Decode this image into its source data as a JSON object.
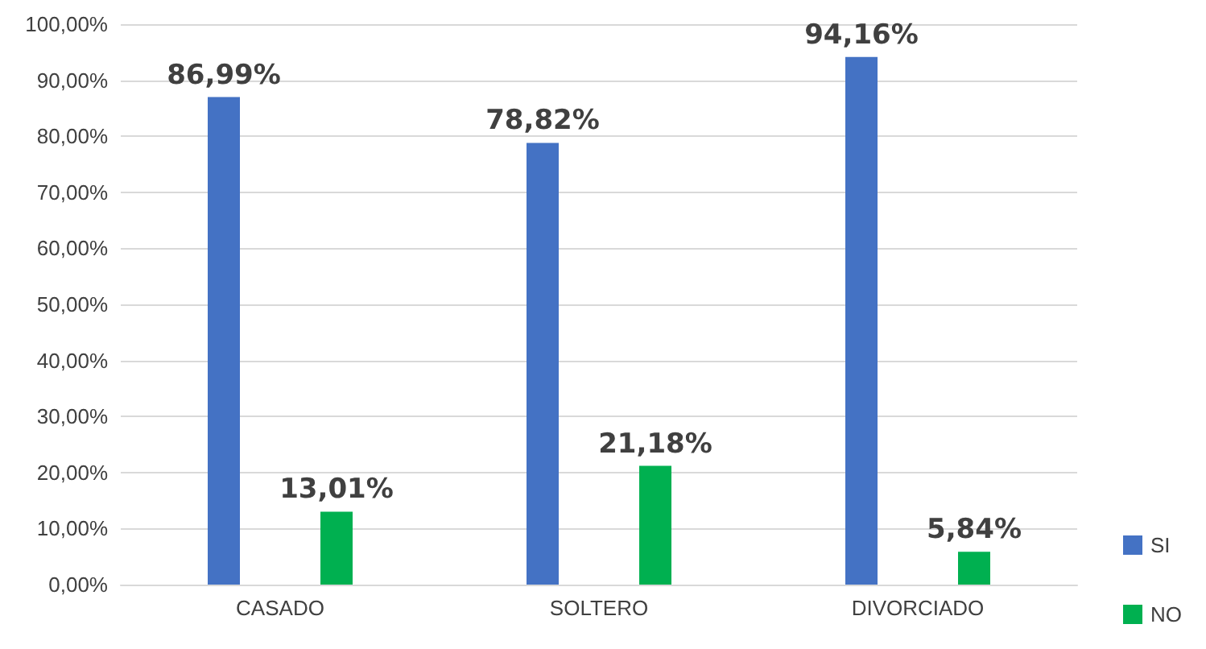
{
  "chart_data": {
    "type": "bar",
    "categories": [
      "CASADO",
      "SOLTERO",
      "DIVORCIADO"
    ],
    "series": [
      {
        "name": "SI",
        "color": "#4472c4",
        "values": [
          86.99,
          78.82,
          94.16
        ],
        "value_labels": [
          "86,99%",
          "78,82%",
          "94,16%"
        ]
      },
      {
        "name": "NO",
        "color": "#00b050",
        "values": [
          13.01,
          21.18,
          5.84
        ],
        "value_labels": [
          "13,01%",
          "21,18%",
          "5,84%"
        ]
      }
    ],
    "ylim": [
      0,
      100
    ],
    "yticks": [
      {
        "value": 0,
        "label": "0,00%"
      },
      {
        "value": 10,
        "label": "10,00%"
      },
      {
        "value": 20,
        "label": "20,00%"
      },
      {
        "value": 30,
        "label": "30,00%"
      },
      {
        "value": 40,
        "label": "40,00%"
      },
      {
        "value": 50,
        "label": "50,00%"
      },
      {
        "value": 60,
        "label": "60,00%"
      },
      {
        "value": 70,
        "label": "70,00%"
      },
      {
        "value": 80,
        "label": "80,00%"
      },
      {
        "value": 90,
        "label": "90,00%"
      },
      {
        "value": 100,
        "label": "100,00%"
      }
    ],
    "grid": "y",
    "legend": "bottom right"
  }
}
